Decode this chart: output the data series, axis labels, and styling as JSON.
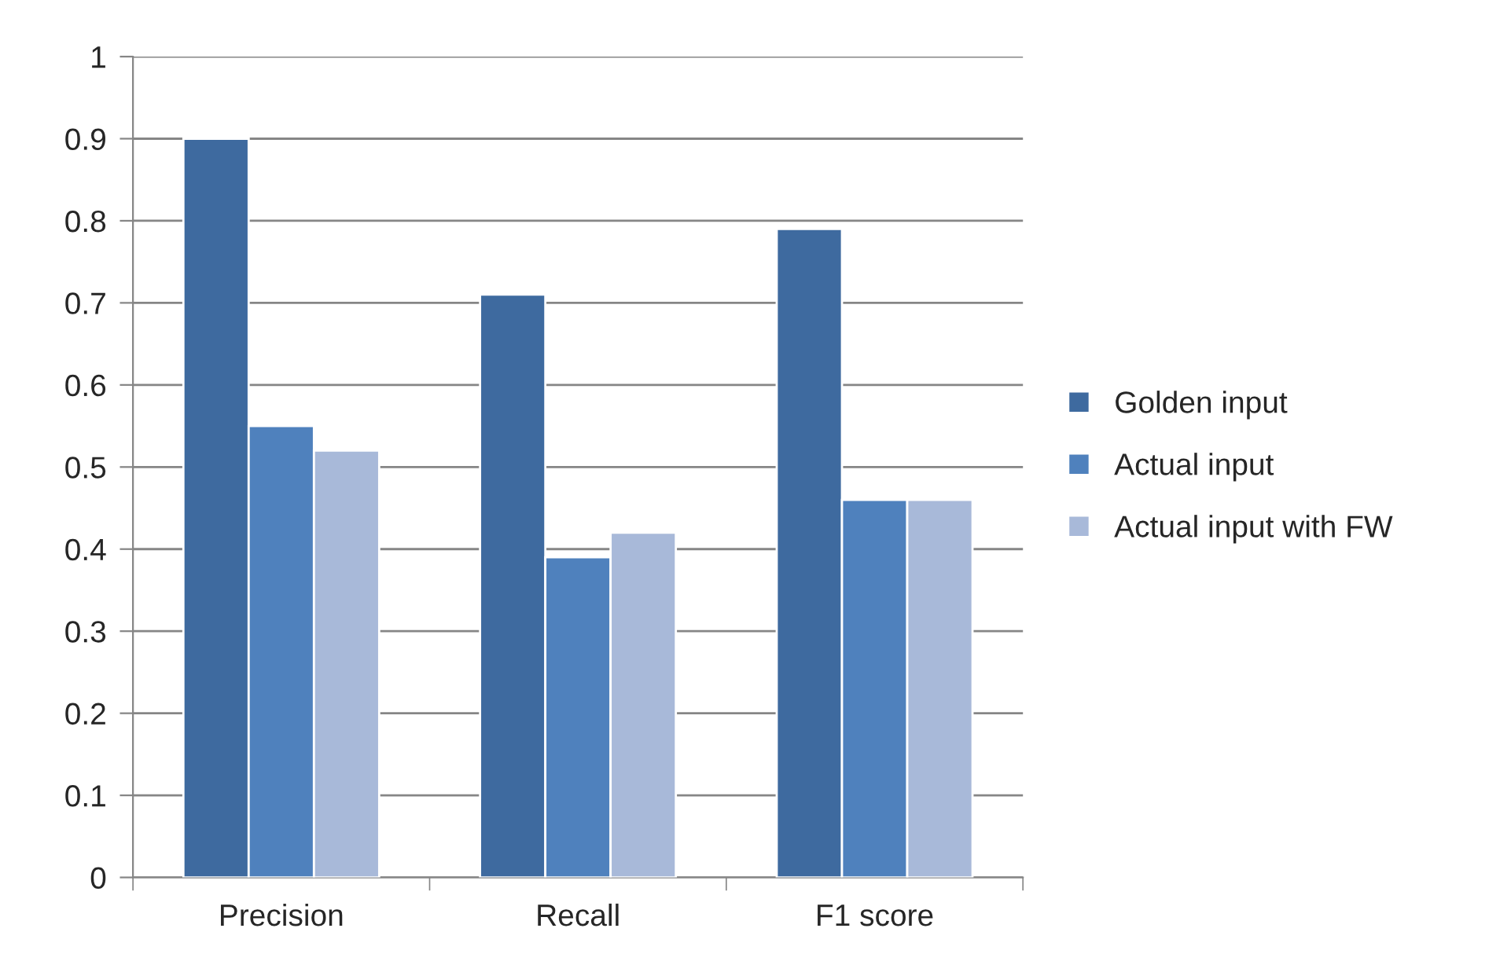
{
  "chart_data": {
    "type": "bar",
    "categories": [
      "Precision",
      "Recall",
      "F1 score"
    ],
    "series": [
      {
        "name": "Golden input",
        "color": "#3e6a9f",
        "values": [
          0.9,
          0.71,
          0.79
        ]
      },
      {
        "name": "Actual input",
        "color": "#4f81bd",
        "values": [
          0.55,
          0.39,
          0.46
        ]
      },
      {
        "name": "Actual input with FW",
        "color": "#a8b9d9",
        "values": [
          0.52,
          0.42,
          0.46
        ]
      }
    ],
    "ylim": [
      0,
      1
    ],
    "yticks": [
      0,
      0.1,
      0.2,
      0.3,
      0.4,
      0.5,
      0.6,
      0.7,
      0.8,
      0.9,
      1
    ],
    "grid": "y",
    "legend": "right"
  }
}
